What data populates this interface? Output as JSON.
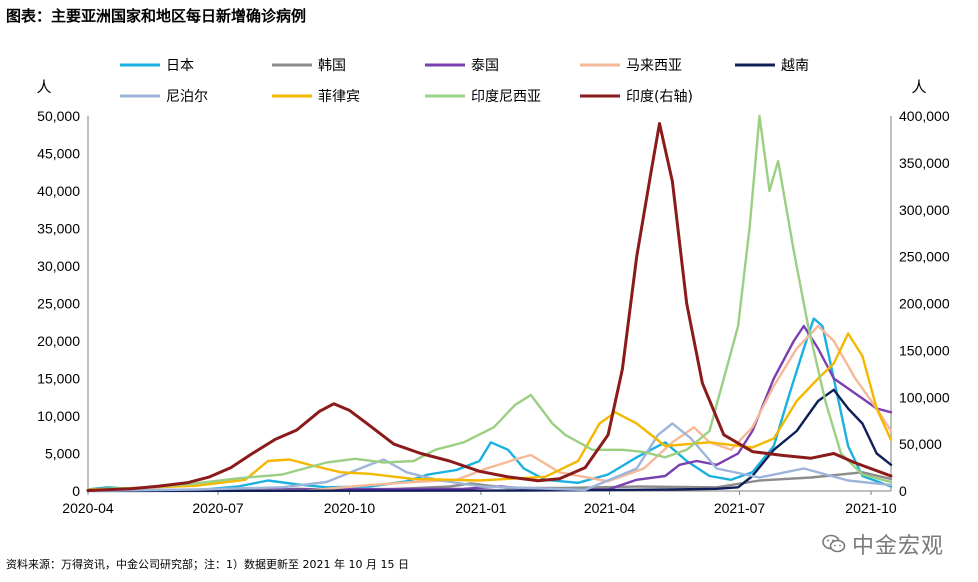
{
  "title": "图表：主要亚洲国家和地区每日新增确诊病例",
  "source": "资料来源：万得资讯，中金公司研究部；注：1）数据更新至 2021 年 10 月 15 日",
  "watermark": "中金宏观",
  "chart_data": {
    "type": "line",
    "y_left_unit": "人",
    "y_right_unit": "人",
    "ylim_left": [
      0,
      50000
    ],
    "ylim_right": [
      0,
      400000
    ],
    "y_left_ticks": [
      "0",
      "5,000",
      "10,000",
      "15,000",
      "20,000",
      "25,000",
      "30,000",
      "35,000",
      "40,000",
      "45,000",
      "50,000"
    ],
    "y_right_ticks": [
      "0",
      "50,000",
      "100,000",
      "150,000",
      "200,000",
      "250,000",
      "300,000",
      "350,000",
      "400,000"
    ],
    "x_ticks": [
      "2020-04",
      "2020-07",
      "2020-10",
      "2021-01",
      "2021-04",
      "2021-07",
      "2021-10"
    ],
    "x_range": [
      "2020-04-01",
      "2021-10-15"
    ],
    "grid": false,
    "legend_position": "top",
    "series": [
      {
        "name": "日本",
        "color": "#1ab0e0",
        "axis": "left",
        "points": [
          [
            "2020-04-01",
            200
          ],
          [
            "2020-04-15",
            500
          ],
          [
            "2020-05-15",
            100
          ],
          [
            "2020-06-15",
            100
          ],
          [
            "2020-07-15",
            600
          ],
          [
            "2020-08-05",
            1400
          ],
          [
            "2020-08-25",
            900
          ],
          [
            "2020-09-15",
            500
          ],
          [
            "2020-10-15",
            600
          ],
          [
            "2020-11-10",
            1300
          ],
          [
            "2020-11-25",
            2200
          ],
          [
            "2020-12-15",
            2800
          ],
          [
            "2020-12-31",
            4000
          ],
          [
            "2021-01-08",
            6500
          ],
          [
            "2021-01-20",
            5500
          ],
          [
            "2021-01-31",
            3000
          ],
          [
            "2021-02-15",
            1500
          ],
          [
            "2021-03-10",
            1100
          ],
          [
            "2021-03-31",
            2200
          ],
          [
            "2021-04-20",
            4500
          ],
          [
            "2021-05-10",
            6500
          ],
          [
            "2021-05-25",
            4000
          ],
          [
            "2021-06-10",
            2000
          ],
          [
            "2021-06-25",
            1500
          ],
          [
            "2021-07-10",
            2500
          ],
          [
            "2021-07-25",
            6000
          ],
          [
            "2021-08-05",
            13000
          ],
          [
            "2021-08-15",
            19000
          ],
          [
            "2021-08-22",
            23000
          ],
          [
            "2021-08-28",
            22000
          ],
          [
            "2021-09-05",
            15000
          ],
          [
            "2021-09-15",
            6000
          ],
          [
            "2021-09-25",
            2000
          ],
          [
            "2021-10-15",
            600
          ]
        ]
      },
      {
        "name": "韩国",
        "color": "#8c8c8c",
        "axis": "left",
        "points": [
          [
            "2020-04-01",
            100
          ],
          [
            "2020-08-01",
            50
          ],
          [
            "2020-08-25",
            300
          ],
          [
            "2020-10-15",
            100
          ],
          [
            "2020-12-10",
            600
          ],
          [
            "2020-12-25",
            1000
          ],
          [
            "2021-01-20",
            400
          ],
          [
            "2021-03-01",
            400
          ],
          [
            "2021-04-20",
            600
          ],
          [
            "2021-06-15",
            500
          ],
          [
            "2021-07-15",
            1400
          ],
          [
            "2021-08-20",
            1800
          ],
          [
            "2021-09-25",
            2500
          ],
          [
            "2021-10-15",
            1600
          ]
        ]
      },
      {
        "name": "泰国",
        "color": "#7a3fb0",
        "axis": "left",
        "points": [
          [
            "2020-04-01",
            100
          ],
          [
            "2020-12-20",
            300
          ],
          [
            "2021-01-15",
            600
          ],
          [
            "2021-02-15",
            100
          ],
          [
            "2021-03-31",
            200
          ],
          [
            "2021-04-20",
            1500
          ],
          [
            "2021-05-10",
            2000
          ],
          [
            "2021-05-20",
            3500
          ],
          [
            "2021-06-01",
            4000
          ],
          [
            "2021-06-15",
            3500
          ],
          [
            "2021-06-30",
            5000
          ],
          [
            "2021-07-10",
            8000
          ],
          [
            "2021-07-25",
            15000
          ],
          [
            "2021-08-08",
            20000
          ],
          [
            "2021-08-15",
            22000
          ],
          [
            "2021-08-25",
            19000
          ],
          [
            "2021-09-05",
            15000
          ],
          [
            "2021-09-20",
            13000
          ],
          [
            "2021-10-05",
            11000
          ],
          [
            "2021-10-15",
            10500
          ]
        ]
      },
      {
        "name": "马来西亚",
        "color": "#f5b998",
        "axis": "left",
        "points": [
          [
            "2020-04-01",
            150
          ],
          [
            "2020-09-01",
            50
          ],
          [
            "2020-10-15",
            800
          ],
          [
            "2020-11-15",
            1200
          ],
          [
            "2020-12-15",
            1500
          ],
          [
            "2021-01-05",
            3000
          ],
          [
            "2021-01-25",
            4200
          ],
          [
            "2021-02-05",
            4800
          ],
          [
            "2021-02-25",
            2500
          ],
          [
            "2021-03-31",
            1300
          ],
          [
            "2021-04-25",
            3000
          ],
          [
            "2021-05-15",
            6500
          ],
          [
            "2021-05-30",
            8500
          ],
          [
            "2021-06-10",
            6500
          ],
          [
            "2021-06-25",
            5500
          ],
          [
            "2021-07-10",
            8500
          ],
          [
            "2021-07-25",
            14000
          ],
          [
            "2021-08-10",
            19000
          ],
          [
            "2021-08-25",
            22000
          ],
          [
            "2021-09-05",
            20000
          ],
          [
            "2021-09-20",
            15000
          ],
          [
            "2021-10-05",
            11000
          ],
          [
            "2021-10-15",
            8000
          ]
        ]
      },
      {
        "name": "越南",
        "color": "#0f1f5a",
        "axis": "left",
        "points": [
          [
            "2020-04-01",
            10
          ],
          [
            "2021-01-30",
            50
          ],
          [
            "2021-05-15",
            200
          ],
          [
            "2021-06-15",
            300
          ],
          [
            "2021-06-30",
            500
          ],
          [
            "2021-07-10",
            2000
          ],
          [
            "2021-07-25",
            5500
          ],
          [
            "2021-08-10",
            8000
          ],
          [
            "2021-08-25",
            12000
          ],
          [
            "2021-09-05",
            13500
          ],
          [
            "2021-09-15",
            11000
          ],
          [
            "2021-09-25",
            9000
          ],
          [
            "2021-10-05",
            5000
          ],
          [
            "2021-10-15",
            3500
          ]
        ]
      },
      {
        "name": "尼泊尔",
        "color": "#9db5d9",
        "axis": "left",
        "points": [
          [
            "2020-04-01",
            10
          ],
          [
            "2020-06-15",
            200
          ],
          [
            "2020-08-15",
            500
          ],
          [
            "2020-09-15",
            1200
          ],
          [
            "2020-10-15",
            3500
          ],
          [
            "2020-10-25",
            4200
          ],
          [
            "2020-11-10",
            2500
          ],
          [
            "2020-12-01",
            1500
          ],
          [
            "2021-01-01",
            600
          ],
          [
            "2021-03-15",
            150
          ],
          [
            "2021-04-20",
            3000
          ],
          [
            "2021-05-05",
            7500
          ],
          [
            "2021-05-15",
            9000
          ],
          [
            "2021-05-28",
            7000
          ],
          [
            "2021-06-15",
            3000
          ],
          [
            "2021-07-15",
            1800
          ],
          [
            "2021-08-15",
            3000
          ],
          [
            "2021-09-15",
            1400
          ],
          [
            "2021-10-15",
            800
          ]
        ]
      },
      {
        "name": "菲律宾",
        "color": "#f5b800",
        "axis": "left",
        "points": [
          [
            "2020-04-01",
            200
          ],
          [
            "2020-06-15",
            700
          ],
          [
            "2020-07-20",
            1500
          ],
          [
            "2020-08-05",
            4000
          ],
          [
            "2020-08-20",
            4200
          ],
          [
            "2020-09-05",
            3400
          ],
          [
            "2020-09-25",
            2500
          ],
          [
            "2020-10-15",
            2300
          ],
          [
            "2020-11-15",
            1600
          ],
          [
            "2020-12-31",
            1400
          ],
          [
            "2021-02-15",
            1900
          ],
          [
            "2021-03-10",
            4000
          ],
          [
            "2021-03-25",
            9000
          ],
          [
            "2021-04-05",
            10500
          ],
          [
            "2021-04-20",
            9000
          ],
          [
            "2021-05-10",
            6000
          ],
          [
            "2021-06-10",
            6500
          ],
          [
            "2021-07-10",
            5800
          ],
          [
            "2021-07-25",
            7000
          ],
          [
            "2021-08-10",
            12000
          ],
          [
            "2021-08-25",
            15000
          ],
          [
            "2021-09-05",
            17000
          ],
          [
            "2021-09-15",
            21000
          ],
          [
            "2021-09-25",
            18000
          ],
          [
            "2021-10-05",
            11000
          ],
          [
            "2021-10-15",
            6800
          ]
        ]
      },
      {
        "name": "印度尼西亚",
        "color": "#9bcf84",
        "axis": "left",
        "points": [
          [
            "2020-04-01",
            150
          ],
          [
            "2020-05-15",
            500
          ],
          [
            "2020-06-15",
            1000
          ],
          [
            "2020-07-15",
            1700
          ],
          [
            "2020-08-15",
            2200
          ],
          [
            "2020-09-15",
            3800
          ],
          [
            "2020-10-05",
            4300
          ],
          [
            "2020-10-25",
            3800
          ],
          [
            "2020-11-15",
            4000
          ],
          [
            "2020-11-30",
            5500
          ],
          [
            "2020-12-20",
            6500
          ],
          [
            "2021-01-10",
            8500
          ],
          [
            "2021-01-25",
            11500
          ],
          [
            "2021-02-05",
            12800
          ],
          [
            "2021-02-20",
            9000
          ],
          [
            "2021-03-01",
            7500
          ],
          [
            "2021-03-20",
            5500
          ],
          [
            "2021-04-10",
            5500
          ],
          [
            "2021-04-25",
            5200
          ],
          [
            "2021-05-10",
            4500
          ],
          [
            "2021-05-25",
            5500
          ],
          [
            "2021-06-10",
            8000
          ],
          [
            "2021-06-20",
            15000
          ],
          [
            "2021-06-30",
            22000
          ],
          [
            "2021-07-08",
            35000
          ],
          [
            "2021-07-15",
            50000
          ],
          [
            "2021-07-22",
            40000
          ],
          [
            "2021-07-28",
            44000
          ],
          [
            "2021-08-08",
            32000
          ],
          [
            "2021-08-18",
            22000
          ],
          [
            "2021-08-30",
            12000
          ],
          [
            "2021-09-10",
            5000
          ],
          [
            "2021-09-25",
            2200
          ],
          [
            "2021-10-15",
            1200
          ]
        ]
      },
      {
        "name": "印度(右轴)",
        "color": "#8b1a1a",
        "axis": "right",
        "points": [
          [
            "2020-04-01",
            500
          ],
          [
            "2020-05-01",
            2500
          ],
          [
            "2020-05-20",
            5000
          ],
          [
            "2020-06-10",
            9000
          ],
          [
            "2020-06-25",
            15000
          ],
          [
            "2020-07-10",
            25000
          ],
          [
            "2020-07-25",
            40000
          ],
          [
            "2020-08-10",
            55000
          ],
          [
            "2020-08-25",
            65000
          ],
          [
            "2020-09-10",
            85000
          ],
          [
            "2020-09-20",
            93000
          ],
          [
            "2020-10-01",
            86000
          ],
          [
            "2020-10-15",
            70000
          ],
          [
            "2020-11-01",
            50000
          ],
          [
            "2020-11-20",
            40000
          ],
          [
            "2020-12-10",
            32000
          ],
          [
            "2020-12-31",
            21000
          ],
          [
            "2021-01-20",
            15000
          ],
          [
            "2021-02-10",
            11000
          ],
          [
            "2021-02-25",
            13000
          ],
          [
            "2021-03-15",
            25000
          ],
          [
            "2021-03-31",
            60000
          ],
          [
            "2021-04-10",
            130000
          ],
          [
            "2021-04-20",
            250000
          ],
          [
            "2021-04-30",
            340000
          ],
          [
            "2021-05-06",
            392000
          ],
          [
            "2021-05-15",
            330000
          ],
          [
            "2021-05-25",
            200000
          ],
          [
            "2021-06-05",
            115000
          ],
          [
            "2021-06-20",
            60000
          ],
          [
            "2021-07-10",
            42000
          ],
          [
            "2021-07-31",
            38000
          ],
          [
            "2021-08-20",
            35000
          ],
          [
            "2021-09-05",
            40000
          ],
          [
            "2021-09-20",
            30000
          ],
          [
            "2021-10-15",
            16000
          ]
        ]
      }
    ]
  }
}
